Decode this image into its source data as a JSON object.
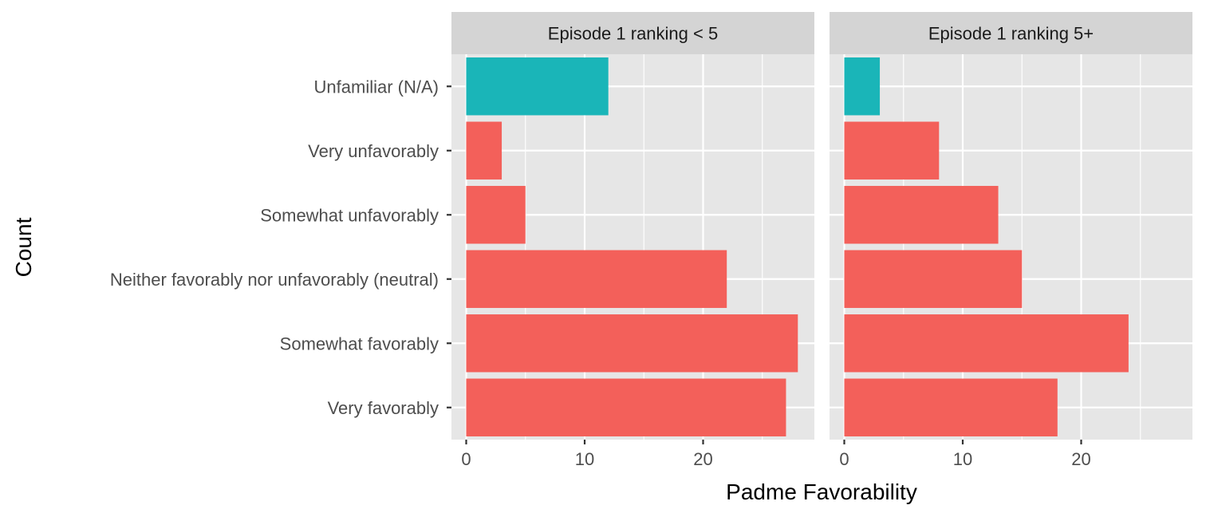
{
  "chart_data": {
    "type": "bar",
    "orientation": "horizontal",
    "xlabel": "Padme Favorability",
    "ylabel": "Count",
    "xlim": [
      0,
      28.5
    ],
    "x_ticks": [
      0,
      10,
      20
    ],
    "grid": true,
    "legend": "none",
    "categories": [
      "Unfamiliar (N/A)",
      "Very unfavorably",
      "Somewhat unfavorably",
      "Neither favorably nor unfavorably (neutral)",
      "Somewhat favorably",
      "Very favorably"
    ],
    "category_colors": [
      "#1ab5b8",
      "#f3605a",
      "#f3605a",
      "#f3605a",
      "#f3605a",
      "#f3605a"
    ],
    "panel_background": "#e6e6e6",
    "strip_background": "#d4d4d4",
    "gridline_color": "#ffffff",
    "facets": [
      {
        "label": "Episode 1 ranking < 5",
        "values": [
          12,
          3,
          5,
          22,
          28,
          27
        ]
      },
      {
        "label": "Episode 1 ranking 5+",
        "values": [
          3,
          8,
          13,
          15,
          24,
          18
        ]
      }
    ]
  }
}
